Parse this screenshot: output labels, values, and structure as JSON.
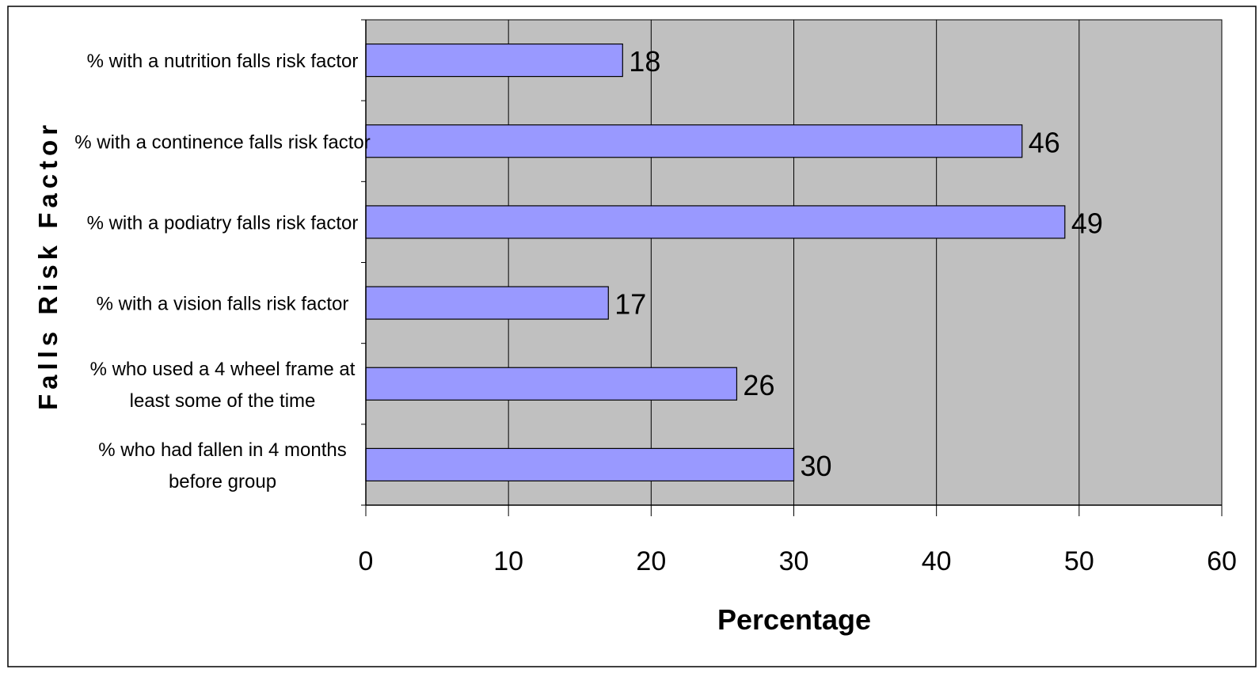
{
  "chart_data": {
    "type": "bar",
    "orientation": "horizontal",
    "title": "",
    "xlabel": "Percentage",
    "ylabel": "Falls Risk Factor",
    "categories": [
      [
        "% with a nutrition falls risk factor"
      ],
      [
        "% with a continence falls risk factor"
      ],
      [
        "% with a podiatry falls risk factor"
      ],
      [
        "% with a vision falls risk factor"
      ],
      [
        "% who used a 4 wheel frame at",
        "least some of the time"
      ],
      [
        "% who had fallen in 4 months",
        "before group"
      ]
    ],
    "values": [
      18,
      46,
      49,
      17,
      26,
      30
    ],
    "xlim": [
      0,
      60
    ],
    "xticks": [
      "0",
      "10",
      "20",
      "30",
      "40",
      "50",
      "60"
    ],
    "grid": "vertical",
    "legend": "none",
    "colors": {
      "bar_fill": "#9999ff",
      "bar_stroke": "#000000",
      "plot_background": "#c0c0c0",
      "gridline": "#000000"
    }
  }
}
